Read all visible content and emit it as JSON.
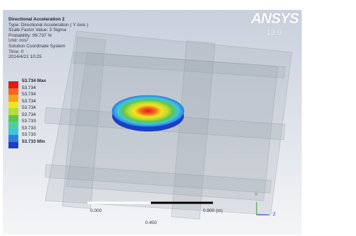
{
  "header": {
    "title": "Directional Acceleration 2",
    "lines": [
      "Type: Directional Acceleration ( Y Axis )",
      "Scale Factor Value: 3 Sigma",
      "Probability: 99.737 %",
      "Unit: m/s²",
      "Solution Coordinate System",
      "Time: 0",
      "2014/4/21 10:25"
    ]
  },
  "legend": {
    "entries": [
      {
        "label": "53.734 Max",
        "color": "#e31a1c"
      },
      {
        "label": "53.734",
        "color": "#f26522"
      },
      {
        "label": "53.734",
        "color": "#f7a21b"
      },
      {
        "label": "53.734",
        "color": "#f4e41c"
      },
      {
        "label": "53.734",
        "color": "#b8dc3a"
      },
      {
        "label": "53.734",
        "color": "#5cc44e"
      },
      {
        "label": "53.733",
        "color": "#4fd19a"
      },
      {
        "label": "53.733",
        "color": "#3cc6e0"
      },
      {
        "label": "53.733",
        "color": "#2f7fe0"
      },
      {
        "label": "53.733 Min",
        "color": "#1a3fc4"
      }
    ]
  },
  "logo": {
    "name": "ANSYS",
    "version": "13.0"
  },
  "scale_bar": {
    "start": "0.000",
    "end": "0.900 (m)",
    "middle": "0.450"
  },
  "triad": {
    "y": "Y",
    "z": "Z"
  }
}
